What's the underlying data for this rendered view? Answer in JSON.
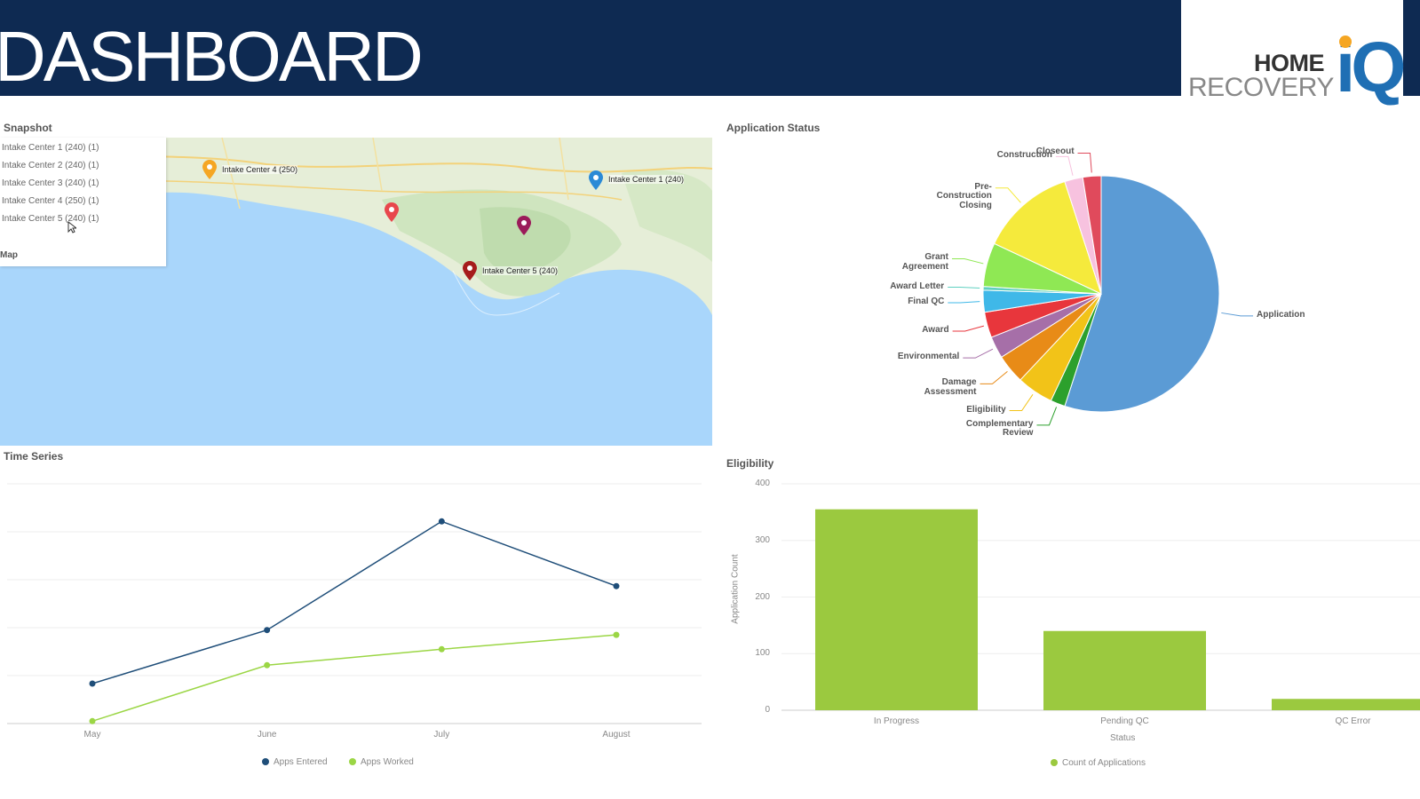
{
  "header": {
    "title": "DASHBOARD",
    "logo": {
      "line1": "HOME",
      "line2": "RECOVERY",
      "mark": "iQ"
    }
  },
  "snapshot": {
    "title": "Snapshot",
    "items": [
      "Intake Center 1 (240) (1)",
      "Intake Center 2 (240) (1)",
      "Intake Center 3 (240) (1)",
      "Intake Center 4 (250) (1)",
      "Intake Center 5 (240) (1)"
    ],
    "map_label": "Map",
    "pins": [
      {
        "label": "Intake Center 4 (250)",
        "color": "#f5a623"
      },
      {
        "label": "",
        "color": "#e8474c"
      },
      {
        "label": "",
        "color": "#9b1b5a"
      },
      {
        "label": "Intake Center 1 (240)",
        "color": "#2b8ad6"
      },
      {
        "label": "Intake Center 5 (240)",
        "color": "#a61c1c"
      }
    ]
  },
  "application_status": {
    "title": "Application Status",
    "chart_data": {
      "type": "pie",
      "slices": [
        {
          "label": "Application",
          "value": 55.0,
          "color": "#5b9bd5"
        },
        {
          "label": "Complementary Review",
          "value": 2.0,
          "color": "#2ca02c"
        },
        {
          "label": "Eligibility",
          "value": 5.0,
          "color": "#f2c318"
        },
        {
          "label": "Damage Assessment",
          "value": 4.0,
          "color": "#e88b17"
        },
        {
          "label": "Environmental",
          "value": 3.0,
          "color": "#a66fa8"
        },
        {
          "label": "Award",
          "value": 3.5,
          "color": "#e8363c"
        },
        {
          "label": "Final QC",
          "value": 3.0,
          "color": "#3fb8e8"
        },
        {
          "label": "Award Letter",
          "value": 0.5,
          "color": "#5fd0c0"
        },
        {
          "label": "Grant Agreement",
          "value": 6.0,
          "color": "#8fe854"
        },
        {
          "label": "Pre-Construction Closing",
          "value": 13.0,
          "color": "#f5ea3c"
        },
        {
          "label": "Construction",
          "value": 2.5,
          "color": "#f7c2df"
        },
        {
          "label": "Closeout",
          "value": 2.5,
          "color": "#e04a5c"
        }
      ]
    }
  },
  "time_series": {
    "title": "Time Series",
    "chart_data": {
      "type": "line",
      "categories": [
        "May",
        "June",
        "July",
        "August"
      ],
      "series": [
        {
          "name": "Apps Entered",
          "values": [
            50,
            117,
            253,
            172
          ],
          "color": "#1f4e79"
        },
        {
          "name": "Apps Worked",
          "values": [
            3,
            73,
            93,
            111
          ],
          "color": "#9bd645"
        }
      ],
      "ylim": [
        0,
        300
      ]
    }
  },
  "eligibility": {
    "title": "Eligibility",
    "chart_data": {
      "type": "bar",
      "categories": [
        "In Progress",
        "Pending QC",
        "QC Error"
      ],
      "values": [
        355,
        140,
        20
      ],
      "ylim": [
        0,
        400
      ],
      "yticks": [
        "0",
        "100",
        "200",
        "300",
        "400"
      ],
      "xlabel": "Status",
      "ylabel": "Application Count",
      "legend": "Count of Applications",
      "color": "#9bc93f"
    }
  }
}
